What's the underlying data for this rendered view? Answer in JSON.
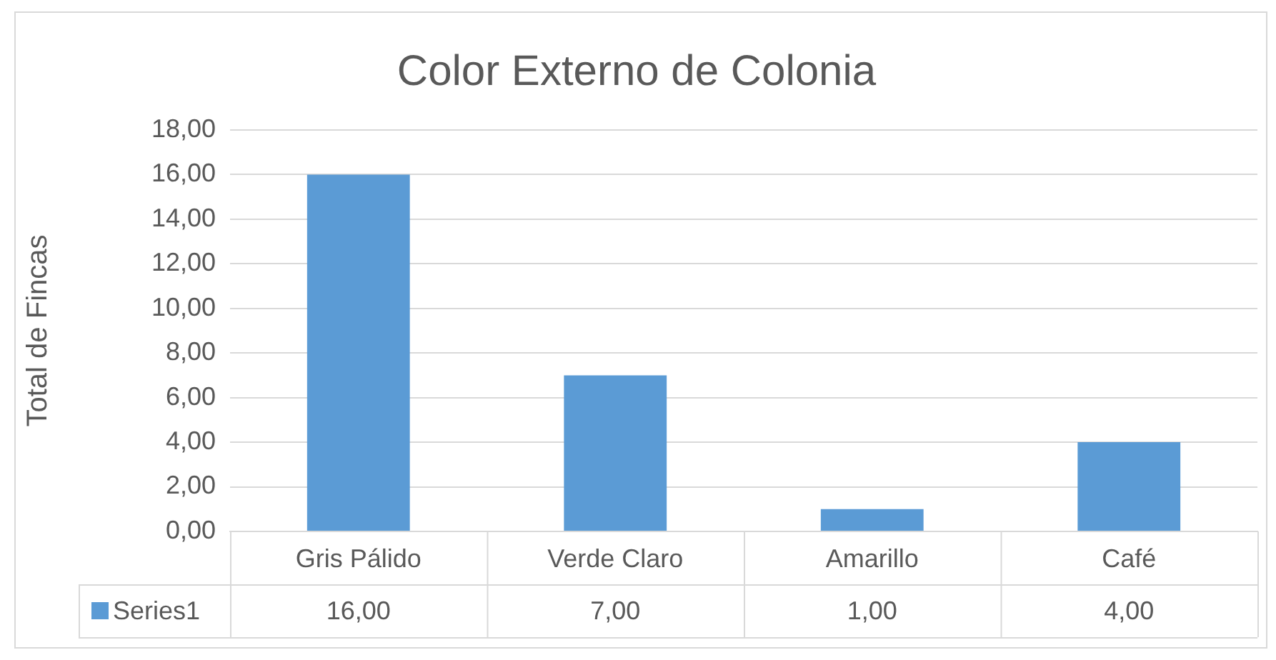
{
  "chart_data": {
    "type": "bar",
    "title": "Color Externo de Colonia",
    "ylabel": "Total de Fincas",
    "categories": [
      "Gris Pálido",
      "Verde Claro",
      "Amarillo",
      "Café"
    ],
    "series": [
      {
        "name": "Series1",
        "color": "#5b9bd5",
        "values": [
          16,
          7,
          1,
          4
        ],
        "value_labels": [
          "16,00",
          "7,00",
          "1,00",
          "4,00"
        ]
      }
    ],
    "ylim": [
      0,
      18
    ],
    "yticks": [
      {
        "value": 0,
        "label": "0,00"
      },
      {
        "value": 2,
        "label": "2,00"
      },
      {
        "value": 4,
        "label": "4,00"
      },
      {
        "value": 6,
        "label": "6,00"
      },
      {
        "value": 8,
        "label": "8,00"
      },
      {
        "value": 10,
        "label": "10,00"
      },
      {
        "value": 12,
        "label": "12,00"
      },
      {
        "value": 14,
        "label": "14,00"
      },
      {
        "value": 16,
        "label": "16,00"
      },
      {
        "value": 18,
        "label": "18,00"
      }
    ],
    "grid": "y",
    "legend": "bottom"
  }
}
